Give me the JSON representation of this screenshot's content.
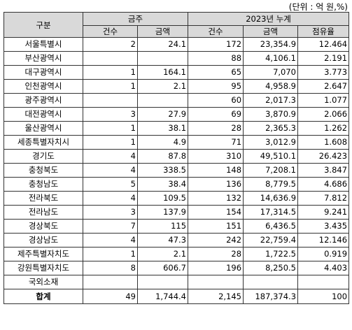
{
  "unit_note": "(단위 : 억 원,%)",
  "header": {
    "category": "구분",
    "group1": "금주",
    "group2": "2023년 누계",
    "cols": [
      "건수",
      "금액",
      "건수",
      "금액",
      "점유율"
    ]
  },
  "rows": [
    {
      "name": "서울특별시",
      "c1": "2",
      "a1": "24.1",
      "c2": "172",
      "a2": "23,354.9",
      "share": "12.464"
    },
    {
      "name": "부산광역시",
      "c1": "",
      "a1": "",
      "c2": "88",
      "a2": "4,106.1",
      "share": "2.191"
    },
    {
      "name": "대구광역시",
      "c1": "1",
      "a1": "164.1",
      "c2": "65",
      "a2": "7,070",
      "share": "3.773"
    },
    {
      "name": "인천광역시",
      "c1": "1",
      "a1": "2.1",
      "c2": "95",
      "a2": "4,958.9",
      "share": "2.647"
    },
    {
      "name": "광주광역시",
      "c1": "",
      "a1": "",
      "c2": "60",
      "a2": "2,017.3",
      "share": "1.077"
    },
    {
      "name": "대전광역시",
      "c1": "3",
      "a1": "27.9",
      "c2": "69",
      "a2": "3,870.9",
      "share": "2.066"
    },
    {
      "name": "울산광역시",
      "c1": "1",
      "a1": "38.1",
      "c2": "28",
      "a2": "2,365.3",
      "share": "1.262"
    },
    {
      "name": "세종특별자치시",
      "c1": "1",
      "a1": "4.9",
      "c2": "71",
      "a2": "3,012.9",
      "share": "1.608"
    },
    {
      "name": "경기도",
      "c1": "4",
      "a1": "87.8",
      "c2": "310",
      "a2": "49,510.1",
      "share": "26.423"
    },
    {
      "name": "충청북도",
      "c1": "4",
      "a1": "338.5",
      "c2": "148",
      "a2": "7,208.1",
      "share": "3.847"
    },
    {
      "name": "충청남도",
      "c1": "5",
      "a1": "38.4",
      "c2": "136",
      "a2": "8,779.5",
      "share": "4.686"
    },
    {
      "name": "전라북도",
      "c1": "4",
      "a1": "109.5",
      "c2": "132",
      "a2": "14,636.9",
      "share": "7.812"
    },
    {
      "name": "전라남도",
      "c1": "3",
      "a1": "137.9",
      "c2": "154",
      "a2": "17,314.5",
      "share": "9.241"
    },
    {
      "name": "경상북도",
      "c1": "7",
      "a1": "115",
      "c2": "151",
      "a2": "6,436.5",
      "share": "3.435"
    },
    {
      "name": "경상남도",
      "c1": "4",
      "a1": "47.3",
      "c2": "242",
      "a2": "22,759.4",
      "share": "12.146"
    },
    {
      "name": "제주특별자치도",
      "c1": "1",
      "a1": "2.1",
      "c2": "28",
      "a2": "1,722.5",
      "share": "0.919"
    },
    {
      "name": "강원특별자치도",
      "c1": "8",
      "a1": "606.7",
      "c2": "196",
      "a2": "8,250.5",
      "share": "4.403"
    },
    {
      "name": "국외소재",
      "c1": "",
      "a1": "",
      "c2": "",
      "a2": "",
      "share": ""
    }
  ],
  "total": {
    "name": "합계",
    "c1": "49",
    "a1": "1,744.4",
    "c2": "2,145",
    "a2": "187,374.3",
    "share": "100"
  }
}
